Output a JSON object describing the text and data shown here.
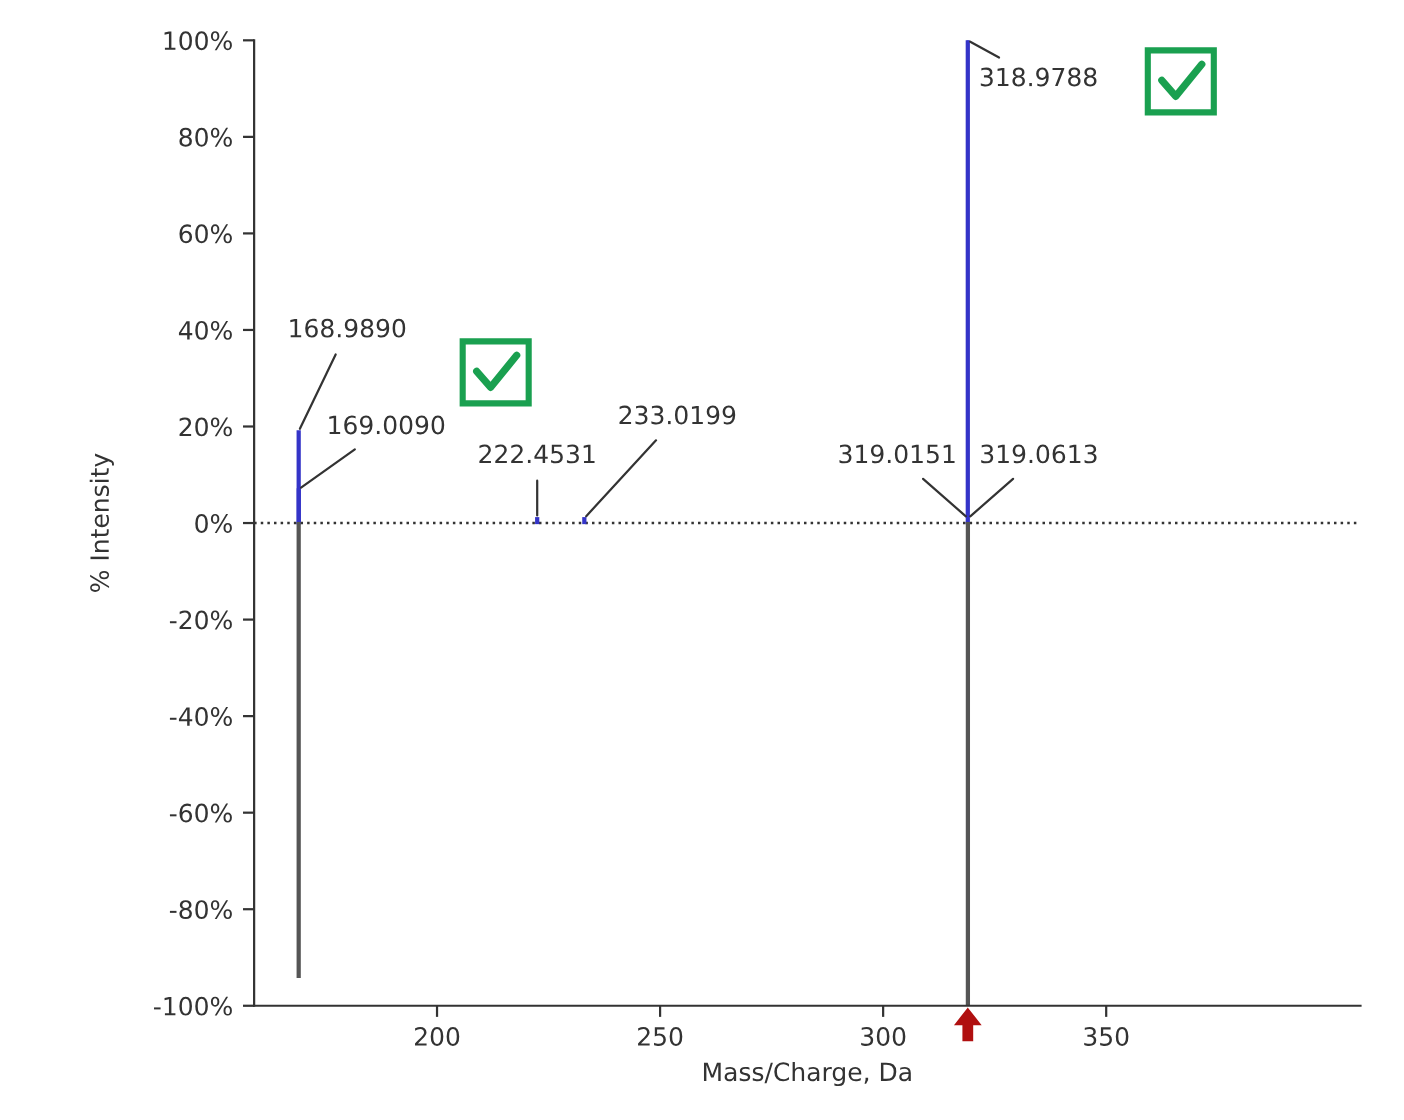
{
  "chart_data": {
    "type": "bar",
    "xlabel": "Mass/Charge, Da",
    "ylabel": "% Intensity",
    "series": [
      {
        "x": [
          168.989,
          169.009,
          222.4531,
          233.0199,
          318.9788
        ],
        "color": "#3434c8",
        "values": [
          19,
          7,
          1,
          1,
          100
        ]
      },
      {
        "x": [
          168.99,
          319.0
        ],
        "color": "#555555",
        "values": [
          -94,
          -100
        ]
      }
    ],
    "xlim": [
      159,
      407
    ],
    "xticks": [
      200,
      250,
      300,
      350
    ],
    "ylim": [
      -100,
      100
    ],
    "yticks": [
      {
        "value": -100,
        "label": "-100%"
      },
      {
        "value": -80,
        "label": "-80%"
      },
      {
        "value": -60,
        "label": "-60%"
      },
      {
        "value": -40,
        "label": "-40%"
      },
      {
        "value": -20,
        "label": "-20%"
      },
      {
        "value": 0,
        "label": "0%"
      },
      {
        "value": 20,
        "label": "20%"
      },
      {
        "value": 40,
        "label": "40%"
      },
      {
        "value": 60,
        "label": "60%"
      },
      {
        "value": 80,
        "label": "80%"
      },
      {
        "value": 100,
        "label": "100%"
      }
    ],
    "ref_lines": [
      {
        "axis": "y",
        "value": 0,
        "color": "#333333",
        "line_style": "dotted"
      }
    ],
    "annotations": [
      {
        "text": "168.9890",
        "x": 168.989,
        "y": 19
      },
      {
        "text": "169.0090",
        "x": 169.009,
        "y": 7
      },
      {
        "text": "222.4531",
        "x": 222.4531,
        "y": 1
      },
      {
        "text": "233.0199",
        "x": 233.0199,
        "y": 1
      },
      {
        "text": "318.9788",
        "x": 318.9788,
        "y": 100
      },
      {
        "text": "319.0151",
        "x": 319.0151,
        "y": 1
      },
      {
        "text": "319.0613",
        "x": 319.0613,
        "y": 1
      }
    ],
    "grid": false,
    "legend": false
  }
}
